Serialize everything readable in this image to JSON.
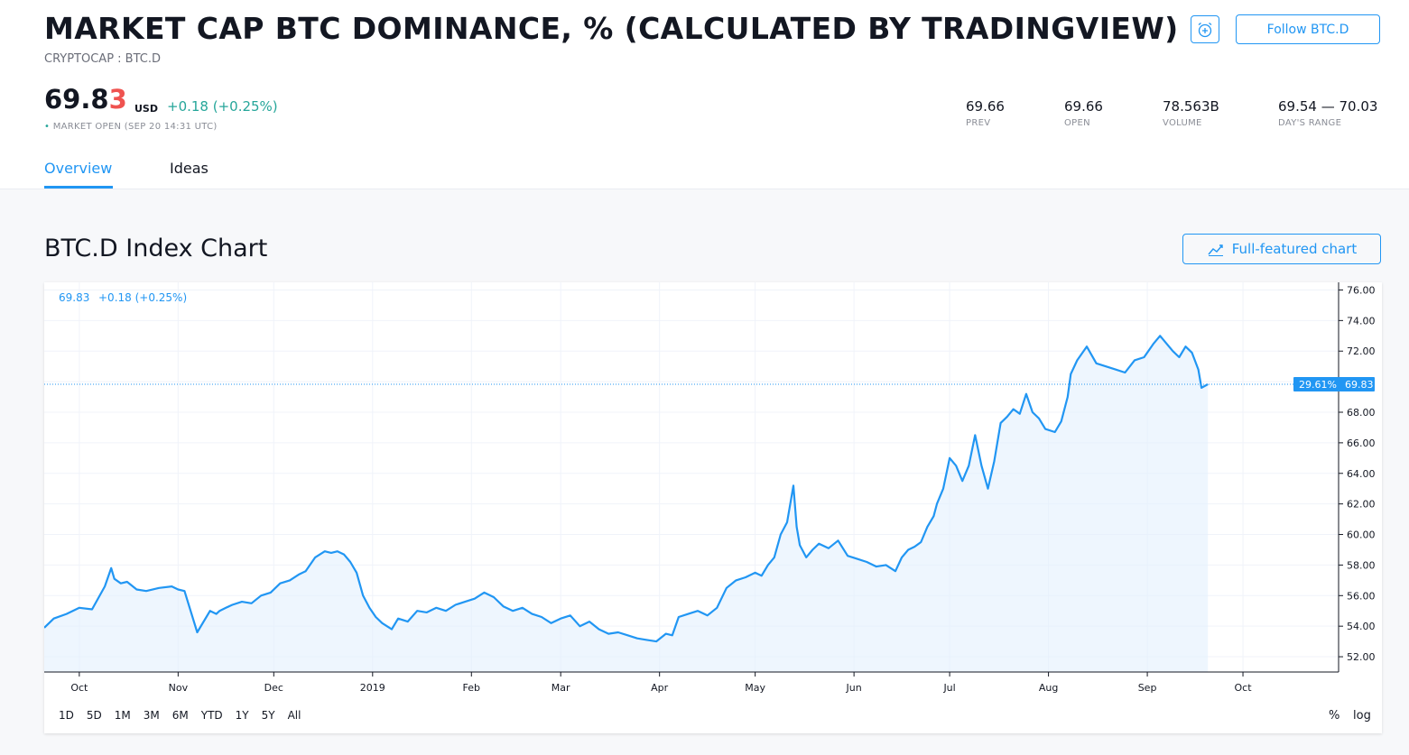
{
  "header": {
    "title": "MARKET CAP BTC DOMINANCE, % (CALCULATED BY TRADINGVIEW)",
    "subtitle": "CRYPTOCAP : BTC.D",
    "follow_label": "Follow BTC.D"
  },
  "quote": {
    "price_main": "69.8",
    "price_last": "3",
    "currency": "USD",
    "change": "+0.18 (+0.25%)",
    "status_dot": "•",
    "market_status": "MARKET OPEN",
    "timestamp": "(SEP 20 14:31 UTC)"
  },
  "stats": [
    {
      "value": "69.66",
      "label": "PREV"
    },
    {
      "value": "69.66",
      "label": "OPEN"
    },
    {
      "value": "78.563B",
      "label": "VOLUME"
    },
    {
      "value": "69.54 — 70.03",
      "label": "DAY'S RANGE"
    }
  ],
  "tabs": [
    {
      "label": "Overview",
      "active": true
    },
    {
      "label": "Ideas",
      "active": false
    }
  ],
  "chart_section": {
    "heading": "BTC.D Index Chart",
    "full_chart_label": "Full-featured chart"
  },
  "chart_data": {
    "type": "area",
    "legend_value": "69.83",
    "legend_change": "+0.18 (+0.25%)",
    "last_value_label": "69.83",
    "last_pct_label": "29.61%",
    "ylim": [
      51,
      76.5
    ],
    "y_ticks": [
      "76.00",
      "74.00",
      "72.00",
      "70.00",
      "68.00",
      "66.00",
      "64.00",
      "62.00",
      "60.00",
      "58.00",
      "56.00",
      "54.00",
      "52.00"
    ],
    "x_ticks": [
      "Oct",
      "Nov",
      "Dec",
      "2019",
      "Feb",
      "Mar",
      "Apr",
      "May",
      "Jun",
      "Jul",
      "Aug",
      "Sep",
      "Oct"
    ],
    "line_color": "#2196f3",
    "grid": true,
    "x_start": "2018-09-20",
    "x_end": "2019-10-31",
    "series": [
      {
        "x": [
          "2018-09-20",
          "2018-09-23",
          "2018-09-27",
          "2018-10-01",
          "2018-10-05",
          "2018-10-09",
          "2018-10-11",
          "2018-10-12",
          "2018-10-14",
          "2018-10-16",
          "2018-10-19",
          "2018-10-22",
          "2018-10-26",
          "2018-10-30",
          "2018-11-01",
          "2018-11-03",
          "2018-11-07",
          "2018-11-11",
          "2018-11-13",
          "2018-11-14",
          "2018-11-16",
          "2018-11-18",
          "2018-11-21",
          "2018-11-24",
          "2018-11-27",
          "2018-11-30",
          "2018-12-03",
          "2018-12-06",
          "2018-12-09",
          "2018-12-11",
          "2018-12-14",
          "2018-12-17",
          "2018-12-19",
          "2018-12-21",
          "2018-12-23",
          "2018-12-25",
          "2018-12-27",
          "2018-12-29",
          "2018-12-31",
          "2019-01-02",
          "2019-01-04",
          "2019-01-07",
          "2019-01-09",
          "2019-01-12",
          "2019-01-15",
          "2019-01-18",
          "2019-01-21",
          "2019-01-24",
          "2019-01-27",
          "2019-01-30",
          "2019-02-02",
          "2019-02-05",
          "2019-02-08",
          "2019-02-11",
          "2019-02-14",
          "2019-02-17",
          "2019-02-20",
          "2019-02-23",
          "2019-02-26",
          "2019-03-01",
          "2019-03-04",
          "2019-03-07",
          "2019-03-10",
          "2019-03-13",
          "2019-03-16",
          "2019-03-19",
          "2019-03-22",
          "2019-03-25",
          "2019-03-28",
          "2019-03-31",
          "2019-04-03",
          "2019-04-05",
          "2019-04-07",
          "2019-04-10",
          "2019-04-13",
          "2019-04-16",
          "2019-04-19",
          "2019-04-22",
          "2019-04-25",
          "2019-04-28",
          "2019-05-01",
          "2019-05-03",
          "2019-05-05",
          "2019-05-07",
          "2019-05-09",
          "2019-05-11",
          "2019-05-13",
          "2019-05-14",
          "2019-05-15",
          "2019-05-17",
          "2019-05-19",
          "2019-05-21",
          "2019-05-24",
          "2019-05-27",
          "2019-05-30",
          "2019-06-02",
          "2019-06-05",
          "2019-06-08",
          "2019-06-11",
          "2019-06-14",
          "2019-06-16",
          "2019-06-18",
          "2019-06-20",
          "2019-06-22",
          "2019-06-24",
          "2019-06-26",
          "2019-06-27",
          "2019-06-29",
          "2019-07-01",
          "2019-07-03",
          "2019-07-05",
          "2019-07-07",
          "2019-07-09",
          "2019-07-11",
          "2019-07-13",
          "2019-07-15",
          "2019-07-17",
          "2019-07-19",
          "2019-07-21",
          "2019-07-23",
          "2019-07-25",
          "2019-07-27",
          "2019-07-29",
          "2019-07-31",
          "2019-08-03",
          "2019-08-05",
          "2019-08-07",
          "2019-08-08",
          "2019-08-10",
          "2019-08-13",
          "2019-08-16",
          "2019-08-19",
          "2019-08-22",
          "2019-08-25",
          "2019-08-28",
          "2019-08-31",
          "2019-09-03",
          "2019-09-05",
          "2019-09-07",
          "2019-09-09",
          "2019-09-11",
          "2019-09-13",
          "2019-09-15",
          "2019-09-17",
          "2019-09-18",
          "2019-09-20"
        ],
        "y": [
          53.9,
          54.5,
          54.8,
          55.2,
          55.1,
          56.6,
          57.8,
          57.1,
          56.8,
          56.9,
          56.4,
          56.3,
          56.5,
          56.6,
          56.4,
          56.3,
          53.6,
          55.0,
          54.8,
          55.0,
          55.2,
          55.4,
          55.6,
          55.5,
          56.0,
          56.2,
          56.8,
          57.0,
          57.4,
          57.6,
          58.5,
          58.9,
          58.8,
          58.9,
          58.7,
          58.2,
          57.5,
          56.0,
          55.2,
          54.6,
          54.2,
          53.8,
          54.5,
          54.3,
          55.0,
          54.9,
          55.2,
          55.0,
          55.4,
          55.6,
          55.8,
          56.2,
          55.9,
          55.3,
          55.0,
          55.2,
          54.8,
          54.6,
          54.2,
          54.5,
          54.7,
          54.0,
          54.3,
          53.8,
          53.5,
          53.6,
          53.4,
          53.2,
          53.1,
          53.0,
          53.5,
          53.4,
          54.6,
          54.8,
          55.0,
          54.7,
          55.2,
          56.5,
          57.0,
          57.2,
          57.5,
          57.3,
          58.0,
          58.5,
          60.0,
          60.8,
          63.2,
          60.5,
          59.3,
          58.5,
          59.0,
          59.4,
          59.1,
          59.6,
          58.6,
          58.4,
          58.2,
          57.9,
          58.0,
          57.6,
          58.5,
          59.0,
          59.2,
          59.5,
          60.5,
          61.2,
          62.0,
          63.0,
          65.0,
          64.5,
          63.5,
          64.5,
          66.5,
          64.5,
          63.0,
          64.8,
          67.3,
          67.7,
          68.2,
          67.9,
          69.2,
          68.0,
          67.6,
          66.9,
          66.7,
          67.4,
          69.0,
          70.5,
          71.4,
          72.3,
          71.2,
          71.0,
          70.8,
          70.6,
          71.4,
          71.6,
          72.5,
          73.0,
          72.5,
          72.0,
          71.6,
          72.3,
          71.9,
          70.8,
          69.6,
          69.83
        ]
      }
    ]
  },
  "range_buttons": [
    "1D",
    "5D",
    "1M",
    "3M",
    "6M",
    "YTD",
    "1Y",
    "5Y",
    "All"
  ],
  "scale_buttons": {
    "percent": "%",
    "log": "log"
  }
}
